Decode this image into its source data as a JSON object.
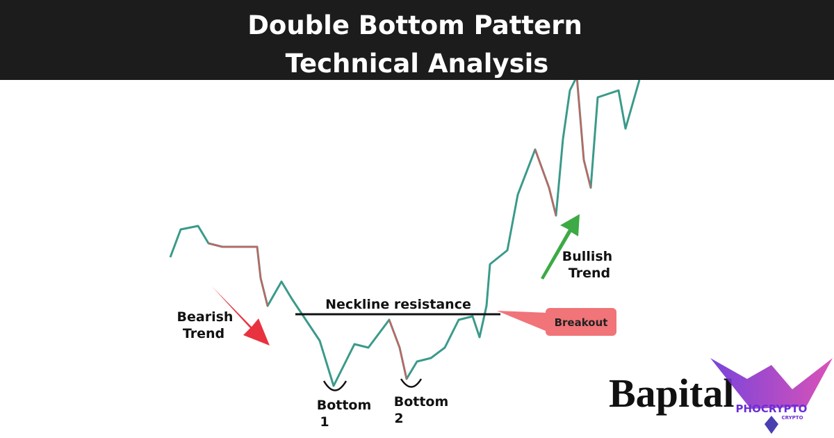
{
  "header": {
    "title_lines": [
      "Double Bottom Pattern",
      "Technical Analysis"
    ]
  },
  "annotations": {
    "bearish": [
      "Bearish",
      "Trend"
    ],
    "bullish": [
      "Bullish",
      "Trend"
    ],
    "neckline": "Neckline resistance",
    "breakout": "Breakout",
    "bottom1": [
      "Bottom",
      "1"
    ],
    "bottom2": [
      "Bottom",
      "2"
    ]
  },
  "brand": "Bapital",
  "logo": {
    "name": "PHOCRYPTO",
    "sub": "CRYPTO"
  }
}
